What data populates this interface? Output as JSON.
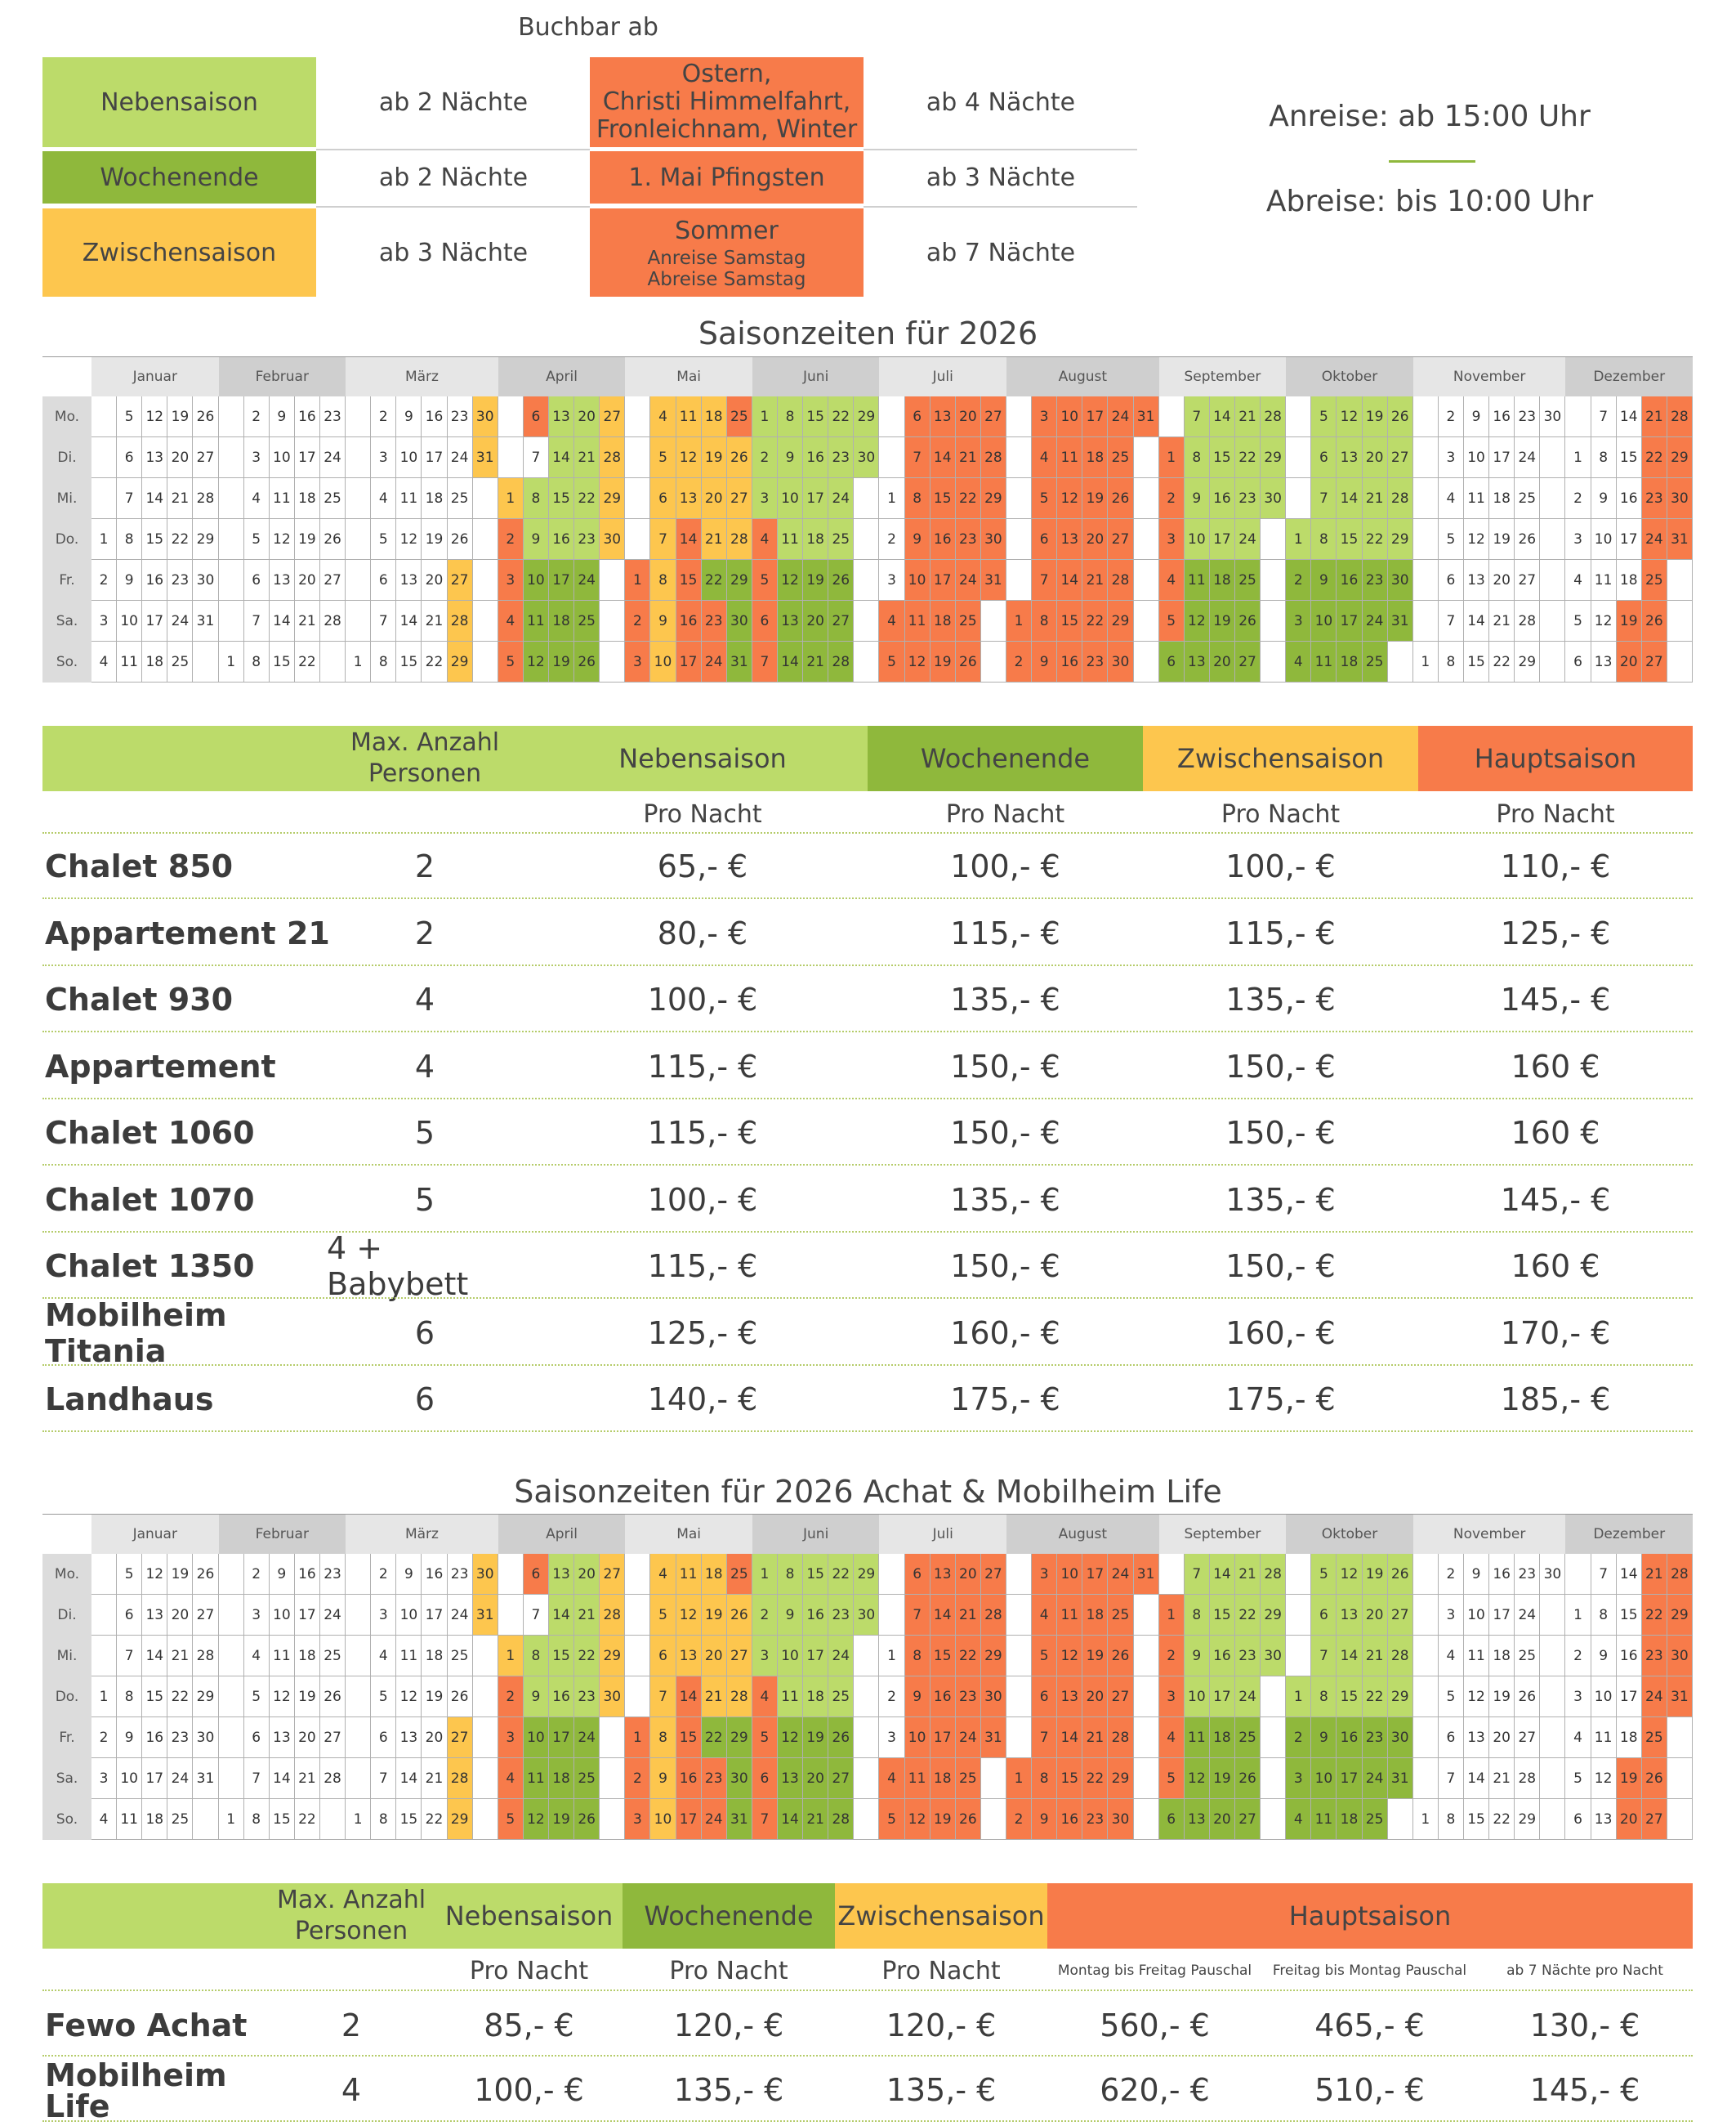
{
  "colors": {
    "nebensaison": "#bcdb6a",
    "wochenende": "#8fb83c",
    "zwischensaison": "#fdc64e",
    "hauptsaison": "#f77b4a",
    "header_gray": "#d9d9d9"
  },
  "legend": {
    "title": "Buchbar ab",
    "rows": [
      {
        "season": "Nebensaison",
        "nights": "ab 2 Nächte",
        "event_lines": [
          "Ostern,",
          "Christi Himmelfahrt,",
          "Fronleichnam, Winter"
        ],
        "event_nights": "ab 4 Nächte"
      },
      {
        "season": "Wochenende",
        "nights": "ab 2 Nächte",
        "event_lines": [
          "1. Mai Pfingsten"
        ],
        "event_nights": "ab 3 Nächte"
      },
      {
        "season": "Zwischensaison",
        "nights": "ab 3 Nächte",
        "event_lines": [
          "Sommer"
        ],
        "event_sub": [
          "Anreise Samstag",
          "Abreise Samstag"
        ],
        "event_nights": "ab 7 Nächte"
      }
    ],
    "arrival": "Anreise: ab 15:00 Uhr",
    "departure": "Abreise: bis 10:00 Uhr"
  },
  "calendar1": {
    "title": "Saisonzeiten für 2026",
    "months": [
      "Januar",
      "Februar",
      "März",
      "April",
      "Mai",
      "Juni",
      "Juli",
      "August",
      "September",
      "Oktober",
      "November",
      "Dezember"
    ],
    "days": [
      "Mo.",
      "Di.",
      "Mi.",
      "Do.",
      "Fr.",
      "Sa.",
      "So."
    ]
  },
  "calendar2": {
    "title": "Saisonzeiten für 2026 Achat & Mobilheim Life",
    "months": [
      "Januar",
      "Februar",
      "März",
      "April",
      "Mai",
      "Juni",
      "Juli",
      "August",
      "September",
      "Oktober",
      "November",
      "Dezember"
    ],
    "days": [
      "Mo.",
      "Di.",
      "Mi.",
      "Do.",
      "Fr.",
      "Sa.",
      "So."
    ]
  },
  "prices1": {
    "headers": {
      "persons": "Max. Anzahl Personen",
      "neben": "Nebensaison",
      "woche": "Wochenende",
      "zwischen": "Zwischensaison",
      "haupt": "Hauptsaison"
    },
    "per_night": "Pro Nacht",
    "rows": [
      {
        "name": "Chalet 850",
        "persons": "2",
        "neben": "65,- €",
        "woche": "100,- €",
        "zwischen": "100,- €",
        "haupt": "110,- €"
      },
      {
        "name": "Appartement 21",
        "persons": "2",
        "neben": "80,- €",
        "woche": "115,- €",
        "zwischen": "115,- €",
        "haupt": "125,- €"
      },
      {
        "name": "Chalet 930",
        "persons": "4",
        "neben": "100,- €",
        "woche": "135,- €",
        "zwischen": "135,- €",
        "haupt": "145,- €"
      },
      {
        "name": "Appartement",
        "persons": "4",
        "neben": "115,- €",
        "woche": "150,- €",
        "zwischen": "150,- €",
        "haupt": "160 €"
      },
      {
        "name": "Chalet 1060",
        "persons": "5",
        "neben": "115,- €",
        "woche": "150,- €",
        "zwischen": "150,- €",
        "haupt": "160 €"
      },
      {
        "name": "Chalet 1070",
        "persons": "5",
        "neben": "100,- €",
        "woche": "135,- €",
        "zwischen": "135,- €",
        "haupt": "145,- €"
      },
      {
        "name": "Chalet 1350",
        "persons": "4 + Babybett",
        "neben": "115,- €",
        "woche": "150,- €",
        "zwischen": "150,- €",
        "haupt": "160 €"
      },
      {
        "name": "Mobilheim Titania",
        "persons": "6",
        "neben": "125,- €",
        "woche": "160,- €",
        "zwischen": "160,- €",
        "haupt": "170,- €"
      },
      {
        "name": "Landhaus",
        "persons": "6",
        "neben": "140,- €",
        "woche": "175,- €",
        "zwischen": "175,- €",
        "haupt": "185,- €"
      }
    ]
  },
  "prices2": {
    "headers": {
      "persons": "Max. Anzahl Personen",
      "neben": "Nebensaison",
      "woche": "Wochenende",
      "zwischen": "Zwischensaison",
      "haupt": "Hauptsaison"
    },
    "subheaders": [
      "Pro Nacht",
      "Pro Nacht",
      "Pro Nacht",
      "Montag bis Freitag Pauschal",
      "Freitag bis Montag Pauschal",
      "ab 7 Nächte pro Nacht"
    ],
    "rows": [
      {
        "name": "Fewo Achat",
        "persons": "2",
        "neben": "85,- €",
        "woche": "120,- €",
        "zwischen": "120,- €",
        "h1": "560,- €",
        "h2": "465,- €",
        "h3": "130,- €"
      },
      {
        "name": "Mobilheim Life",
        "persons": "4",
        "neben": "100,- €",
        "woche": "135,- €",
        "zwischen": "135,- €",
        "h1": "620,- €",
        "h2": "510,- €",
        "h3": "145,- €"
      }
    ]
  }
}
